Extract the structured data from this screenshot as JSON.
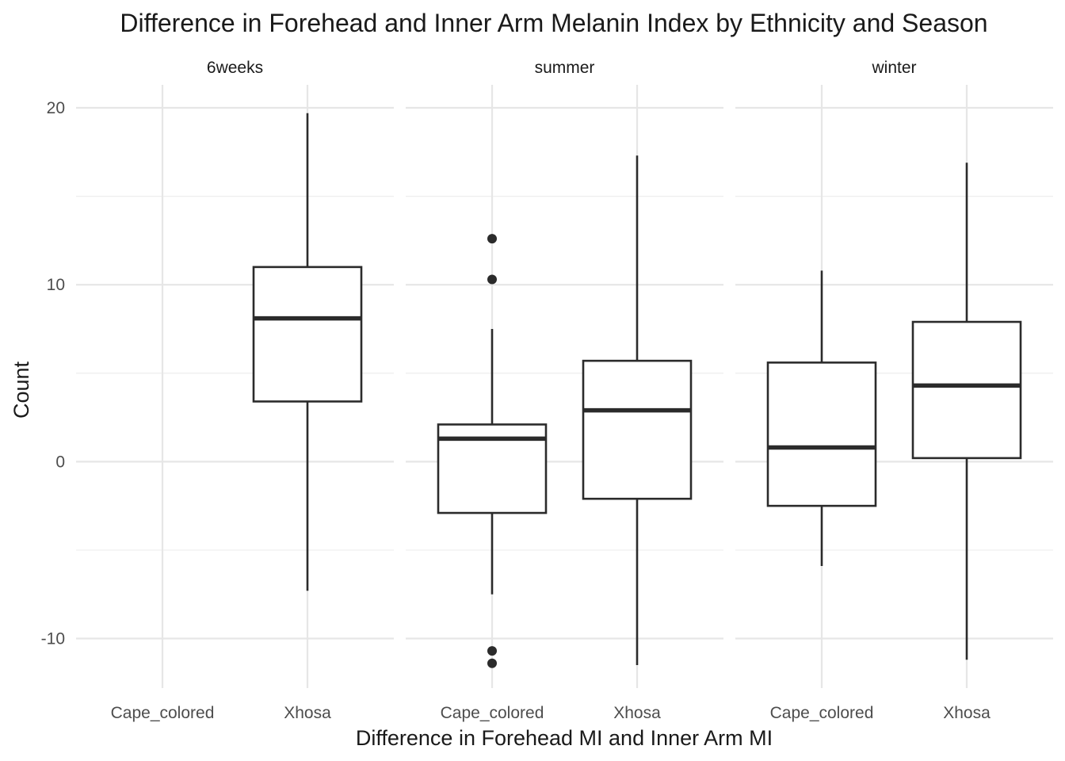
{
  "chart_data": {
    "type": "boxplot",
    "title": "Difference in Forehead and Inner Arm Melanin Index by Ethnicity and Season",
    "xlabel": "Difference in Forehead MI and Inner Arm MI",
    "ylabel": "Count",
    "ylim": [
      -12.8,
      21.3
    ],
    "yticks": [
      -10,
      0,
      10,
      20
    ],
    "ytick_labels": [
      "-10",
      "0",
      "10",
      "20"
    ],
    "grid": true,
    "categories": [
      "Cape_colored",
      "Xhosa"
    ],
    "facets": [
      {
        "label": "6weeks",
        "boxes": [
          {
            "category": "Xhosa",
            "min": -7.3,
            "q1": 3.4,
            "median": 8.1,
            "q3": 11.0,
            "max": 19.7,
            "outliers": []
          }
        ]
      },
      {
        "label": "summer",
        "boxes": [
          {
            "category": "Cape_colored",
            "min": -7.5,
            "q1": -2.9,
            "median": 1.3,
            "q3": 2.1,
            "max": 7.5,
            "outliers": [
              12.6,
              10.3,
              -10.7,
              -11.4
            ]
          },
          {
            "category": "Xhosa",
            "min": -11.5,
            "q1": -2.1,
            "median": 2.9,
            "q3": 5.7,
            "max": 17.3,
            "outliers": []
          }
        ]
      },
      {
        "label": "winter",
        "boxes": [
          {
            "category": "Cape_colored",
            "min": -5.9,
            "q1": -2.5,
            "median": 0.8,
            "q3": 5.6,
            "max": 10.8,
            "outliers": []
          },
          {
            "category": "Xhosa",
            "min": -11.2,
            "q1": 0.2,
            "median": 4.3,
            "q3": 7.9,
            "max": 16.9,
            "outliers": []
          }
        ]
      }
    ]
  }
}
